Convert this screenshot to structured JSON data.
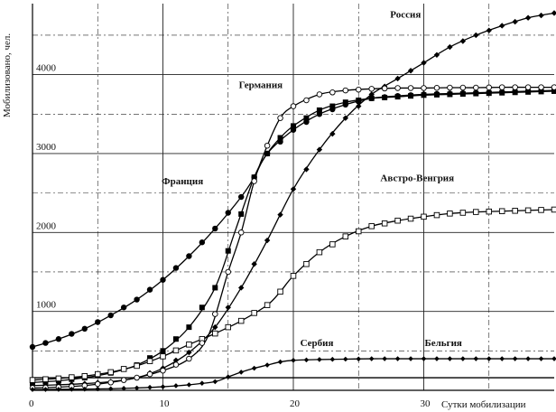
{
  "chart_data": {
    "type": "line",
    "title": "",
    "xlabel": "Сутки мобилизации",
    "ylabel": "Мобилизовано, чел.",
    "xlim": [
      0,
      40
    ],
    "ylim": [
      0,
      4900
    ],
    "x_ticks": [
      0,
      10,
      20,
      30
    ],
    "x_tick_labels": [
      "0",
      "10",
      "20",
      "30"
    ],
    "y_ticks": [
      1000,
      2000,
      3000,
      4000
    ],
    "y_tick_labels": [
      "1000",
      "2000",
      "3000",
      "4000"
    ],
    "grid": true,
    "series": [
      {
        "name": "Россия",
        "marker": "filled-diamond",
        "points": [
          [
            0,
            60
          ],
          [
            2,
            70
          ],
          [
            4,
            85
          ],
          [
            6,
            110
          ],
          [
            8,
            160
          ],
          [
            10,
            280
          ],
          [
            12,
            480
          ],
          [
            14,
            800
          ],
          [
            16,
            1300
          ],
          [
            18,
            1900
          ],
          [
            20,
            2550
          ],
          [
            22,
            3050
          ],
          [
            24,
            3450
          ],
          [
            26,
            3750
          ],
          [
            28,
            3950
          ],
          [
            30,
            4150
          ],
          [
            32,
            4350
          ],
          [
            34,
            4500
          ],
          [
            36,
            4620
          ],
          [
            38,
            4720
          ],
          [
            40,
            4780
          ]
        ]
      },
      {
        "name": "Германия",
        "marker": "filled-square",
        "points": [
          [
            0,
            100
          ],
          [
            2,
            120
          ],
          [
            4,
            160
          ],
          [
            6,
            220
          ],
          [
            8,
            320
          ],
          [
            10,
            500
          ],
          [
            12,
            800
          ],
          [
            14,
            1300
          ],
          [
            15.5,
            2000
          ],
          [
            17,
            2700
          ],
          [
            18,
            3000
          ],
          [
            19,
            3200
          ],
          [
            20,
            3350
          ],
          [
            22,
            3550
          ],
          [
            24,
            3650
          ],
          [
            26,
            3700
          ],
          [
            28,
            3720
          ],
          [
            30,
            3740
          ],
          [
            32,
            3750
          ],
          [
            34,
            3760
          ],
          [
            36,
            3770
          ],
          [
            38,
            3780
          ],
          [
            40,
            3790
          ]
        ]
      },
      {
        "name": "Франция",
        "marker": "filled-circle",
        "points": [
          [
            0,
            550
          ],
          [
            2,
            650
          ],
          [
            4,
            780
          ],
          [
            6,
            950
          ],
          [
            8,
            1150
          ],
          [
            10,
            1400
          ],
          [
            12,
            1700
          ],
          [
            14,
            2050
          ],
          [
            16,
            2450
          ],
          [
            17,
            2700
          ],
          [
            18,
            3000
          ],
          [
            20,
            3300
          ],
          [
            22,
            3500
          ],
          [
            24,
            3620
          ],
          [
            26,
            3700
          ],
          [
            28,
            3730
          ],
          [
            30,
            3750
          ],
          [
            32,
            3760
          ],
          [
            34,
            3770
          ],
          [
            36,
            3780
          ],
          [
            38,
            3790
          ],
          [
            40,
            3800
          ]
        ]
      },
      {
        "name": "Австро-Венгрия",
        "marker": "open-square",
        "points": [
          [
            0,
            130
          ],
          [
            2,
            150
          ],
          [
            4,
            180
          ],
          [
            6,
            230
          ],
          [
            8,
            310
          ],
          [
            10,
            430
          ],
          [
            12,
            580
          ],
          [
            14,
            720
          ],
          [
            16,
            880
          ],
          [
            18,
            1080
          ],
          [
            19,
            1250
          ],
          [
            20,
            1450
          ],
          [
            22,
            1750
          ],
          [
            24,
            1950
          ],
          [
            26,
            2080
          ],
          [
            28,
            2150
          ],
          [
            30,
            2200
          ],
          [
            32,
            2240
          ],
          [
            34,
            2260
          ],
          [
            36,
            2270
          ],
          [
            38,
            2280
          ],
          [
            40,
            2290
          ]
        ]
      },
      {
        "name": "Сербия",
        "marker": "open-circle",
        "points": [
          [
            0,
            30
          ],
          [
            2,
            40
          ],
          [
            4,
            60
          ],
          [
            6,
            100
          ],
          [
            8,
            160
          ],
          [
            10,
            250
          ],
          [
            12,
            400
          ],
          [
            13.5,
            700
          ],
          [
            15,
            1500
          ],
          [
            16,
            2000
          ],
          [
            17,
            2650
          ],
          [
            18,
            3100
          ],
          [
            19,
            3450
          ],
          [
            20,
            3600
          ],
          [
            22,
            3750
          ],
          [
            24,
            3800
          ],
          [
            26,
            3820
          ],
          [
            28,
            3830
          ],
          [
            30,
            3830
          ],
          [
            32,
            3835
          ],
          [
            34,
            3835
          ],
          [
            36,
            3840
          ],
          [
            38,
            3840
          ],
          [
            40,
            3840
          ]
        ]
      },
      {
        "name": "Бельгия",
        "marker": "filled-diamond-small",
        "points": [
          [
            0,
            10
          ],
          [
            2,
            12
          ],
          [
            4,
            15
          ],
          [
            6,
            20
          ],
          [
            8,
            30
          ],
          [
            10,
            45
          ],
          [
            12,
            70
          ],
          [
            14,
            110
          ],
          [
            15,
            170
          ],
          [
            16,
            230
          ],
          [
            17,
            280
          ],
          [
            18,
            320
          ],
          [
            19,
            360
          ],
          [
            20,
            380
          ],
          [
            22,
            390
          ],
          [
            24,
            395
          ],
          [
            26,
            400
          ],
          [
            28,
            400
          ],
          [
            30,
            400
          ],
          [
            32,
            400
          ],
          [
            34,
            400
          ],
          [
            36,
            400
          ],
          [
            38,
            400
          ],
          [
            40,
            400
          ]
        ]
      },
      {
        "name": "baseline",
        "marker": "none",
        "points": [
          [
            0,
            160
          ],
          [
            40,
            160
          ]
        ]
      }
    ],
    "labels": [
      {
        "text": "Россия",
        "at": [
          28.6,
          4720
        ]
      },
      {
        "text": "Германия",
        "at": [
          17.5,
          3830
        ]
      },
      {
        "text": "Франция",
        "at": [
          11.5,
          2610
        ]
      },
      {
        "text": "Австро-Венгрия",
        "at": [
          29.5,
          2650
        ]
      },
      {
        "text": "Сербия",
        "at": [
          21.8,
          560
        ]
      },
      {
        "text": "Бельгия",
        "at": [
          31.5,
          560
        ]
      }
    ]
  }
}
